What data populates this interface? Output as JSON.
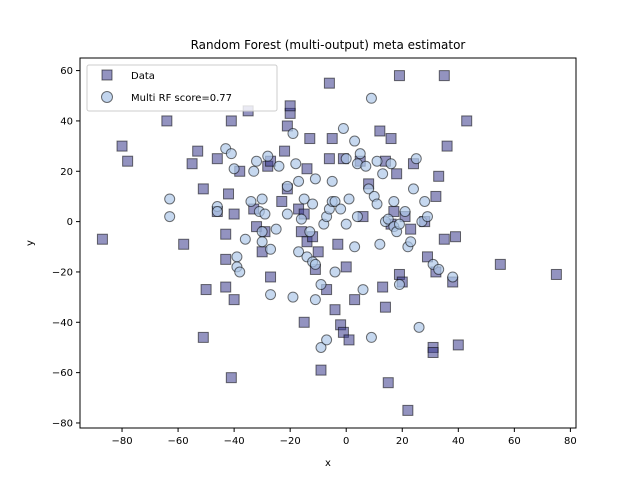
{
  "chart_data": {
    "type": "scatter",
    "title": "Random Forest (multi-output) meta estimator",
    "xlabel": "x",
    "ylabel": "y",
    "xlim": [
      -95,
      82
    ],
    "ylim": [
      -82,
      65
    ],
    "xticks": [
      -80,
      -60,
      -40,
      -20,
      0,
      20,
      40,
      60,
      80
    ],
    "yticks": [
      -80,
      -60,
      -40,
      -20,
      0,
      20,
      40,
      60
    ],
    "legend_position": "top-left",
    "series": [
      {
        "name": "Data",
        "marker": "square",
        "color": "#3a3a8c",
        "points": [
          [
            -87,
            -7
          ],
          [
            -80,
            30
          ],
          [
            -78,
            24
          ],
          [
            -64,
            40
          ],
          [
            -58,
            -9
          ],
          [
            -55,
            23
          ],
          [
            -53,
            28
          ],
          [
            -51,
            13
          ],
          [
            -50,
            -27
          ],
          [
            -51,
            -46
          ],
          [
            -46,
            25
          ],
          [
            -46,
            4
          ],
          [
            -43,
            -15
          ],
          [
            -43,
            -26
          ],
          [
            -43,
            -5
          ],
          [
            -42,
            11
          ],
          [
            -41,
            40
          ],
          [
            -41,
            -62
          ],
          [
            -40,
            -31
          ],
          [
            -40,
            3
          ],
          [
            -38,
            20
          ],
          [
            -35,
            44
          ],
          [
            -33,
            5
          ],
          [
            -32,
            -2
          ],
          [
            -30,
            -12
          ],
          [
            -29,
            -4
          ],
          [
            -28,
            22
          ],
          [
            -27,
            24
          ],
          [
            -27,
            -22
          ],
          [
            -23,
            8
          ],
          [
            -22,
            28
          ],
          [
            -21,
            38
          ],
          [
            -21,
            13
          ],
          [
            -20,
            43
          ],
          [
            -20,
            46
          ],
          [
            -17,
            5
          ],
          [
            -16,
            -4
          ],
          [
            -15,
            -40
          ],
          [
            -15,
            3
          ],
          [
            -14,
            -8
          ],
          [
            -14,
            21
          ],
          [
            -13,
            33
          ],
          [
            -12,
            -6
          ],
          [
            -11,
            -19
          ],
          [
            -10,
            -12
          ],
          [
            -9,
            -59
          ],
          [
            -7,
            -27
          ],
          [
            -6,
            25
          ],
          [
            -6,
            55
          ],
          [
            -5,
            33
          ],
          [
            -4,
            -35
          ],
          [
            -3,
            -9
          ],
          [
            -2,
            -41
          ],
          [
            -1,
            25
          ],
          [
            -1,
            -44
          ],
          [
            0,
            -18
          ],
          [
            1,
            -47
          ],
          [
            3,
            -31
          ],
          [
            5,
            24
          ],
          [
            6,
            2
          ],
          [
            8,
            15
          ],
          [
            12,
            36
          ],
          [
            13,
            -26
          ],
          [
            14,
            -34
          ],
          [
            14,
            24
          ],
          [
            15,
            -64
          ],
          [
            16,
            -1
          ],
          [
            16,
            33
          ],
          [
            17,
            4
          ],
          [
            18,
            19
          ],
          [
            19,
            58
          ],
          [
            19,
            -21
          ],
          [
            20,
            -24
          ],
          [
            21,
            2
          ],
          [
            22,
            -75
          ],
          [
            23,
            -3
          ],
          [
            24,
            23
          ],
          [
            28,
            0
          ],
          [
            29,
            -14
          ],
          [
            31,
            -50
          ],
          [
            31,
            -52
          ],
          [
            32,
            10
          ],
          [
            32,
            -20
          ],
          [
            33,
            18
          ],
          [
            35,
            -7
          ],
          [
            35,
            58
          ],
          [
            36,
            30
          ],
          [
            38,
            -24
          ],
          [
            39,
            -6
          ],
          [
            40,
            -49
          ],
          [
            43,
            40
          ],
          [
            55,
            -17
          ],
          [
            75,
            -21
          ]
        ]
      },
      {
        "name": "Multi RF score=0.77",
        "marker": "circle",
        "color": "#aec7e8",
        "points": [
          [
            -63,
            9
          ],
          [
            -63,
            2
          ],
          [
            -46,
            6
          ],
          [
            -46,
            4
          ],
          [
            -43,
            29
          ],
          [
            -41,
            27
          ],
          [
            -40,
            21
          ],
          [
            -39,
            -14
          ],
          [
            -39,
            -18
          ],
          [
            -38,
            -20
          ],
          [
            -36,
            -7
          ],
          [
            -34,
            8
          ],
          [
            -33,
            20
          ],
          [
            -32,
            24
          ],
          [
            -31,
            4
          ],
          [
            -30,
            -8
          ],
          [
            -30,
            -4
          ],
          [
            -30,
            9
          ],
          [
            -29,
            3
          ],
          [
            -28,
            26
          ],
          [
            -27,
            -29
          ],
          [
            -27,
            -11
          ],
          [
            -25,
            -3
          ],
          [
            -24,
            22
          ],
          [
            -21,
            14
          ],
          [
            -21,
            3
          ],
          [
            -19,
            35
          ],
          [
            -19,
            -30
          ],
          [
            -18,
            23
          ],
          [
            -17,
            16
          ],
          [
            -17,
            -12
          ],
          [
            -16,
            1
          ],
          [
            -15,
            9
          ],
          [
            -14,
            -14
          ],
          [
            -13,
            -4
          ],
          [
            -12,
            -16
          ],
          [
            -12,
            7
          ],
          [
            -11,
            17
          ],
          [
            -11,
            -31
          ],
          [
            -11,
            -17
          ],
          [
            -9,
            -50
          ],
          [
            -9,
            -25
          ],
          [
            -8,
            -1
          ],
          [
            -7,
            -47
          ],
          [
            -7,
            2
          ],
          [
            -6,
            5
          ],
          [
            -5,
            8
          ],
          [
            -5,
            16
          ],
          [
            -4,
            8
          ],
          [
            -4,
            -20
          ],
          [
            -2,
            5
          ],
          [
            -1,
            37
          ],
          [
            0,
            25
          ],
          [
            0,
            -1
          ],
          [
            1,
            9
          ],
          [
            3,
            -10
          ],
          [
            3,
            32
          ],
          [
            4,
            23
          ],
          [
            4,
            2
          ],
          [
            5,
            27
          ],
          [
            6,
            -27
          ],
          [
            7,
            22
          ],
          [
            8,
            13
          ],
          [
            9,
            -46
          ],
          [
            9,
            49
          ],
          [
            10,
            10
          ],
          [
            11,
            24
          ],
          [
            11,
            7
          ],
          [
            12,
            -9
          ],
          [
            13,
            19
          ],
          [
            14,
            0
          ],
          [
            15,
            1
          ],
          [
            16,
            23
          ],
          [
            17,
            -2
          ],
          [
            17,
            8
          ],
          [
            18,
            -4
          ],
          [
            19,
            -1
          ],
          [
            19,
            -25
          ],
          [
            21,
            4
          ],
          [
            22,
            -10
          ],
          [
            23,
            -8
          ],
          [
            24,
            13
          ],
          [
            25,
            25
          ],
          [
            26,
            -42
          ],
          [
            27,
            0
          ],
          [
            28,
            8
          ],
          [
            29,
            2
          ],
          [
            31,
            -17
          ],
          [
            33,
            -19
          ],
          [
            38,
            -22
          ]
        ]
      }
    ]
  }
}
